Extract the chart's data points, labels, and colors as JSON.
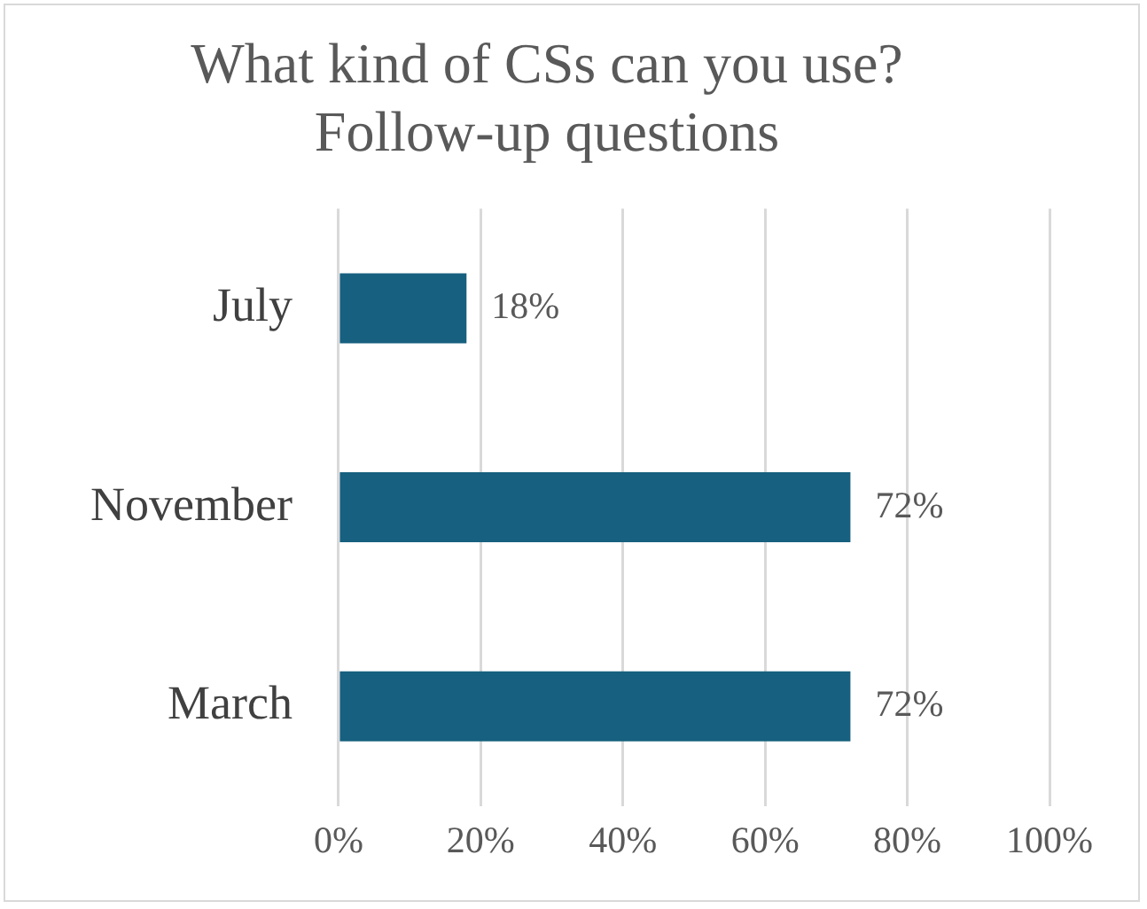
{
  "chart_data": {
    "type": "bar",
    "orientation": "horizontal",
    "title": "What kind of CSs can you use?\nFollow-up questions",
    "categories": [
      "July",
      "November",
      "March"
    ],
    "values": [
      18,
      72,
      72
    ],
    "color": "#17607f",
    "value_labels": [
      "18%",
      "72%",
      "72%"
    ],
    "xlim": [
      0,
      100
    ],
    "xticks": [
      {
        "value": 0,
        "label": "0%"
      },
      {
        "value": 20,
        "label": "20%"
      },
      {
        "value": 40,
        "label": "40%"
      },
      {
        "value": 60,
        "label": "60%"
      },
      {
        "value": 80,
        "label": "80%"
      },
      {
        "value": 100,
        "label": "100%"
      }
    ],
    "grid": "x",
    "legend": false
  }
}
